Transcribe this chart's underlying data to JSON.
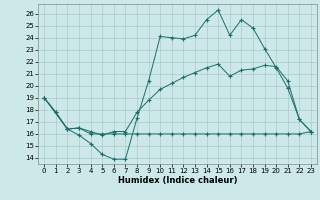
{
  "xlabel": "Humidex (Indice chaleur)",
  "bg_color": "#cce8e8",
  "line_color": "#1a6e6a",
  "xlim": [
    -0.5,
    23.5
  ],
  "ylim": [
    13.5,
    26.8
  ],
  "yticks": [
    14,
    15,
    16,
    17,
    18,
    19,
    20,
    21,
    22,
    23,
    24,
    25,
    26
  ],
  "xticks": [
    0,
    1,
    2,
    3,
    4,
    5,
    6,
    7,
    8,
    9,
    10,
    11,
    12,
    13,
    14,
    15,
    16,
    17,
    18,
    19,
    20,
    21,
    22,
    23
  ],
  "line1_x": [
    0,
    1,
    2,
    3,
    4,
    5,
    6,
    7,
    8,
    9,
    10,
    11,
    12,
    13,
    14,
    15,
    16,
    17,
    18,
    19,
    20,
    21,
    22,
    23
  ],
  "line1_y": [
    19.0,
    17.8,
    16.4,
    15.9,
    15.2,
    14.3,
    13.9,
    13.9,
    17.3,
    20.4,
    24.1,
    24.0,
    23.9,
    24.2,
    25.5,
    26.3,
    24.2,
    25.5,
    24.8,
    23.1,
    21.5,
    19.8,
    17.2,
    16.2
  ],
  "line2_x": [
    0,
    1,
    2,
    3,
    4,
    5,
    6,
    7,
    8,
    9,
    10,
    11,
    12,
    13,
    14,
    15,
    16,
    17,
    18,
    19,
    20,
    21,
    22,
    23
  ],
  "line2_y": [
    19.0,
    17.8,
    16.4,
    16.5,
    16.2,
    15.9,
    16.2,
    16.2,
    17.8,
    18.8,
    19.7,
    20.2,
    20.7,
    21.1,
    21.5,
    21.8,
    20.8,
    21.3,
    21.4,
    21.7,
    21.6,
    20.4,
    17.2,
    16.2
  ],
  "line3_x": [
    0,
    2,
    3,
    4,
    5,
    6,
    7,
    8,
    9,
    10,
    11,
    12,
    13,
    14,
    15,
    16,
    17,
    18,
    19,
    20,
    21,
    22,
    23
  ],
  "line3_y": [
    19.0,
    16.4,
    16.5,
    16.0,
    16.0,
    16.0,
    16.0,
    16.0,
    16.0,
    16.0,
    16.0,
    16.0,
    16.0,
    16.0,
    16.0,
    16.0,
    16.0,
    16.0,
    16.0,
    16.0,
    16.0,
    16.0,
    16.2
  ],
  "grid_color": "#aacccc",
  "spine_color": "#888888"
}
